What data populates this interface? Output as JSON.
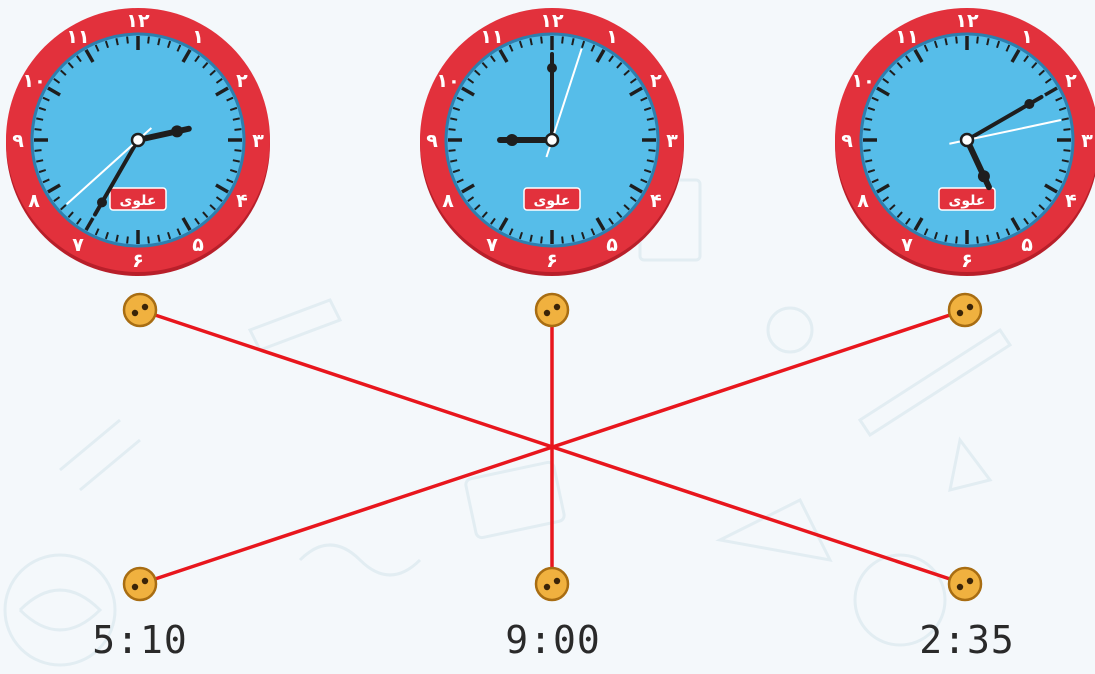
{
  "colors": {
    "bezel": "#e2313c",
    "bezel_dark": "#b81f2a",
    "face": "#56bde9",
    "hand": "#1e1e1e",
    "second_hand": "#ffffff",
    "line": "#e8161d",
    "dot_fill": "#f0b13f",
    "dot_stroke": "#a86d12",
    "brand_badge": "#e2313c"
  },
  "clock_numerals": [
    "۱۲",
    "۱",
    "۲",
    "۳",
    "۴",
    "۵",
    "۶",
    "۷",
    "۸",
    "۹",
    "۱۰",
    "۱۱"
  ],
  "clocks": [
    {
      "id": "clock-left",
      "brand": "علوی",
      "hour": 2,
      "minute": 35
    },
    {
      "id": "clock-middle",
      "brand": "علوی",
      "hour": 9,
      "minute": 0
    },
    {
      "id": "clock-right",
      "brand": "علوی",
      "hour": 5,
      "minute": 10
    }
  ],
  "times": [
    "5:10",
    "9:00",
    "2:35"
  ],
  "matches": [
    {
      "clock": 0,
      "time": 2
    },
    {
      "clock": 1,
      "time": 1
    },
    {
      "clock": 2,
      "time": 0
    }
  ]
}
